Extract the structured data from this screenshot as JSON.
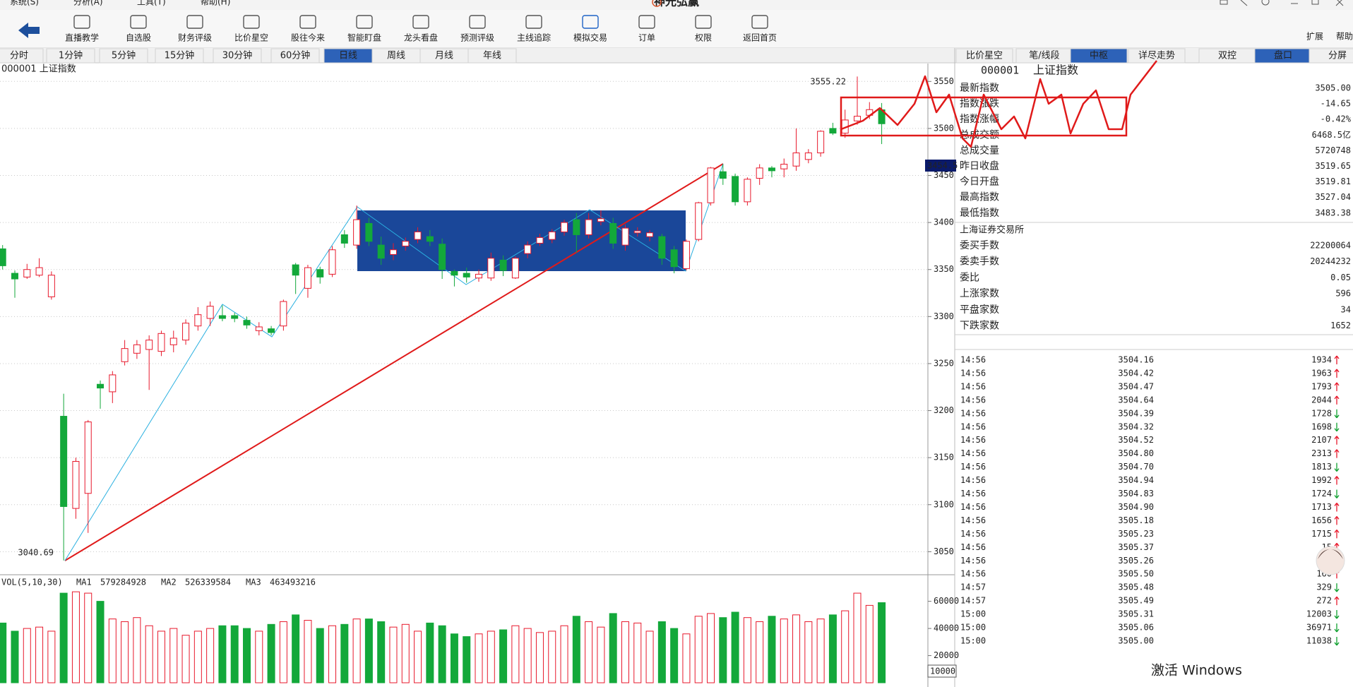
{
  "menu": [
    "系统(S)",
    "分析(A)",
    "工具(T)",
    "帮助(H)"
  ],
  "app_title": "神光弘赢",
  "toolbar": {
    "items": [
      "直播教学",
      "自选股",
      "财务评级",
      "比价星空",
      "股往今来",
      "智能盯盘",
      "龙头看盘",
      "预测评级",
      "主线追踪",
      "模拟交易",
      "订单",
      "权限",
      "返回首页"
    ],
    "active": 9,
    "right": [
      "扩展",
      "帮助"
    ]
  },
  "periods": {
    "items": [
      "分时",
      "1分钟",
      "5分钟",
      "15分钟",
      "30分钟",
      "60分钟",
      "日线",
      "周线",
      "月线",
      "年线"
    ],
    "active": 6
  },
  "chart_data": [
    {
      "type": "candlestick",
      "title": "000001 上证指数",
      "up_color": "#e8192c",
      "down_color": "#13a83a",
      "open": [
        3372,
        3346,
        3342,
        3344,
        3321,
        3194,
        3096,
        3112,
        3228,
        3220,
        3252,
        3261,
        3265,
        3263,
        3270,
        3275,
        3290,
        3298,
        3301,
        3301,
        3296,
        3285,
        3287,
        3290,
        3355,
        3330,
        3350,
        3345,
        3387,
        3376,
        3399,
        3376,
        3366,
        3375,
        3382,
        3385,
        3377,
        3348,
        3346,
        3341,
        3341,
        3360,
        3341,
        3367,
        3378,
        3382,
        3390,
        3403,
        3387,
        3401,
        3399,
        3376,
        3389,
        3385,
        3385,
        3371,
        3351,
        3382,
        3421,
        3454,
        3449,
        3422,
        3447,
        3458,
        3457,
        3460,
        3467,
        3474,
        3500,
        3495,
        3508,
        3514,
        3519.81
      ],
      "high": [
        3376,
        3349,
        3356,
        3362,
        3348,
        3218,
        3150,
        3190,
        3232,
        3242,
        3275,
        3275,
        3280,
        3285,
        3285,
        3297,
        3310,
        3316,
        3312,
        3304,
        3300,
        3294,
        3290,
        3318,
        3357,
        3355,
        3353,
        3375,
        3392,
        3418,
        3405,
        3385,
        3378,
        3384,
        3395,
        3392,
        3383,
        3350,
        3352,
        3350,
        3368,
        3365,
        3364,
        3380,
        3388,
        3393,
        3403,
        3410,
        3410,
        3413,
        3405,
        3398,
        3395,
        3392,
        3388,
        3375,
        3382,
        3422,
        3459,
        3462,
        3452,
        3448,
        3462,
        3460,
        3468,
        3500,
        3478,
        3498,
        3506,
        3520,
        3555.22,
        3528,
        3527.04
      ],
      "low": [
        3350,
        3320,
        3340,
        3342,
        3318,
        3040.69,
        3085,
        3070,
        3202,
        3208,
        3248,
        3255,
        3222,
        3258,
        3262,
        3270,
        3285,
        3290,
        3295,
        3294,
        3287,
        3280,
        3280,
        3285,
        3324,
        3320,
        3335,
        3342,
        3373,
        3372,
        3375,
        3355,
        3360,
        3370,
        3378,
        3375,
        3340,
        3332,
        3336,
        3337,
        3338,
        3343,
        3340,
        3362,
        3375,
        3378,
        3386,
        3368,
        3383,
        3397,
        3372,
        3370,
        3385,
        3380,
        3355,
        3346,
        3349,
        3380,
        3418,
        3440,
        3418,
        3418,
        3440,
        3448,
        3448,
        3455,
        3463,
        3470,
        3493,
        3490,
        3504,
        3510,
        3483.38
      ],
      "close": [
        3354,
        3340,
        3350,
        3352,
        3344,
        3098,
        3146,
        3188,
        3224,
        3238,
        3266,
        3270,
        3275,
        3282,
        3277,
        3293,
        3302,
        3311,
        3298,
        3298,
        3291,
        3289,
        3283,
        3316,
        3344,
        3352,
        3342,
        3371,
        3378,
        3403,
        3380,
        3362,
        3371,
        3380,
        3390,
        3380,
        3350,
        3344,
        3342,
        3345,
        3362,
        3349,
        3362,
        3376,
        3384,
        3390,
        3400,
        3387,
        3403,
        3404,
        3378,
        3394,
        3391,
        3389,
        3362,
        3353,
        3380,
        3421,
        3458,
        3447,
        3422,
        3446,
        3458,
        3455,
        3462,
        3474,
        3474,
        3497,
        3495,
        3509,
        3513,
        3520,
        3505
      ],
      "ylim": [
        3027,
        3569
      ],
      "yticks": [
        3050,
        3100,
        3150,
        3200,
        3250,
        3300,
        3350,
        3400,
        3450,
        3500,
        3550
      ],
      "grid": true,
      "cursor_label": "3454.5"
    },
    {
      "type": "bar",
      "title": "VOL(5,10,30)",
      "up_color": "#e8192c",
      "down_color": "#13a83a",
      "values": [
        44000,
        38000,
        40000,
        41000,
        38000,
        66000,
        67000,
        66000,
        60000,
        47000,
        45000,
        48000,
        42000,
        38000,
        40000,
        35000,
        38000,
        40000,
        42000,
        42000,
        40000,
        38000,
        43000,
        45000,
        50000,
        46000,
        40000,
        42000,
        43000,
        47000,
        47000,
        45000,
        41000,
        43000,
        38000,
        44000,
        42000,
        36000,
        34000,
        36000,
        38000,
        39000,
        42000,
        40000,
        37000,
        38000,
        42000,
        49000,
        45000,
        41000,
        51000,
        45000,
        44000,
        38000,
        45000,
        40000,
        36000,
        49000,
        51000,
        48000,
        52000,
        48000,
        45000,
        49000,
        47000,
        50000,
        45000,
        47000,
        50000,
        53000,
        66000,
        57000,
        59000
      ],
      "ylim": [
        0,
        78000
      ],
      "yticks": [
        20000,
        40000,
        60000
      ],
      "cursor_label": "10000",
      "ma": [
        {
          "name": "MA1",
          "value": 579284928,
          "color": "#e8192c"
        },
        {
          "name": "MA2",
          "value": 526339584,
          "color": "#1f2fb8"
        },
        {
          "name": "MA3",
          "value": 463493216,
          "color": "#888888"
        }
      ]
    }
  ],
  "side": {
    "tabs": [
      "比价星空",
      "笔/线段",
      "中枢",
      "详尽走势",
      "双控",
      "盘口",
      "分屏"
    ],
    "active": [
      2,
      5
    ],
    "code": "000001",
    "name": "上证指数",
    "quote": [
      {
        "label": "最新指数",
        "value": "3505.00",
        "color": "#10a030"
      },
      {
        "label": "指数涨跌",
        "value": "-14.65",
        "color": "#10a030"
      },
      {
        "label": "指数涨幅",
        "value": "-0.42%",
        "color": "#10a030"
      },
      {
        "label": "总成交额",
        "value": "6468.5亿",
        "color": "#aaaaaa"
      },
      {
        "label": "总成交量",
        "value": "5720748",
        "color": "#aaaaaa"
      },
      {
        "label": "昨日收盘",
        "value": "3519.65",
        "color": "#222222"
      },
      {
        "label": "今日开盘",
        "value": "3519.81",
        "color": "#e8192c"
      },
      {
        "label": "最高指数",
        "value": "3527.04",
        "color": "#e8192c"
      },
      {
        "label": "最低指数",
        "value": "3483.38",
        "color": "#10a030"
      }
    ],
    "exchange": "上海证券交易所",
    "orders": [
      {
        "label": "委买手数",
        "value": "22200064",
        "color": "#222222"
      },
      {
        "label": "委卖手数",
        "value": "20244232",
        "color": "#222222"
      },
      {
        "label": "委比",
        "value": "0.05",
        "color": "#e8192c"
      },
      {
        "label": "上涨家数",
        "value": "596",
        "color": "#e8192c"
      },
      {
        "label": "平盘家数",
        "value": "34",
        "color": "#aaaaaa"
      },
      {
        "label": "下跌家数",
        "value": "1652",
        "color": "#10a030"
      }
    ]
  },
  "ticks": [
    {
      "time": "14:56",
      "price": "3504.16",
      "volume": "1934",
      "up": true
    },
    {
      "time": "14:56",
      "price": "3504.42",
      "volume": "1963",
      "up": true
    },
    {
      "time": "14:56",
      "price": "3504.47",
      "volume": "1793",
      "up": true
    },
    {
      "time": "14:56",
      "price": "3504.64",
      "volume": "2044",
      "up": true
    },
    {
      "time": "14:56",
      "price": "3504.39",
      "volume": "1728",
      "up": false
    },
    {
      "time": "14:56",
      "price": "3504.32",
      "volume": "1698",
      "up": false
    },
    {
      "time": "14:56",
      "price": "3504.52",
      "volume": "2107",
      "up": true
    },
    {
      "time": "14:56",
      "price": "3504.80",
      "volume": "2313",
      "up": true
    },
    {
      "time": "14:56",
      "price": "3504.70",
      "volume": "1813",
      "up": false
    },
    {
      "time": "14:56",
      "price": "3504.94",
      "volume": "1992",
      "up": true
    },
    {
      "time": "14:56",
      "price": "3504.83",
      "volume": "1724",
      "up": false
    },
    {
      "time": "14:56",
      "price": "3504.90",
      "volume": "1713",
      "up": true
    },
    {
      "time": "14:56",
      "price": "3505.18",
      "volume": "1656",
      "up": true
    },
    {
      "time": "14:56",
      "price": "3505.23",
      "volume": "1715",
      "up": true
    },
    {
      "time": "14:56",
      "price": "3505.37",
      "volume": "15",
      "up": true
    },
    {
      "time": "14:56",
      "price": "3505.26",
      "volume": "1",
      "up": false
    },
    {
      "time": "14:56",
      "price": "3505.50",
      "volume": "160",
      "up": true
    },
    {
      "time": "14:57",
      "price": "3505.48",
      "volume": "329",
      "up": false
    },
    {
      "time": "14:57",
      "price": "3505.49",
      "volume": "272",
      "up": true
    },
    {
      "time": "15:00",
      "price": "3505.31",
      "volume": "12003",
      "up": false
    },
    {
      "time": "15:00",
      "price": "3505.06",
      "volume": "36971",
      "up": false
    },
    {
      "time": "15:00",
      "price": "3505.00",
      "volume": "11038",
      "up": false
    }
  ],
  "watermark": "激活 Windows"
}
